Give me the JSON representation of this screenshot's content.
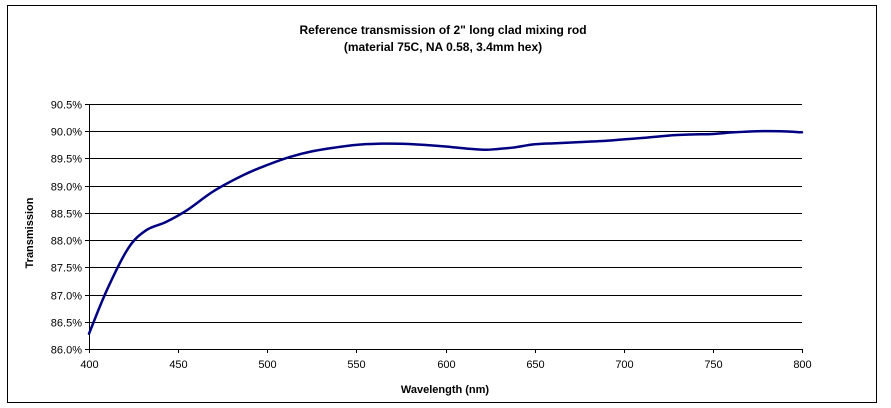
{
  "chart_data": {
    "type": "line",
    "title": "Reference transmission of 2\" long clad mixing rod",
    "subtitle": "(material 75C, NA 0.58, 3.4mm hex)",
    "xlabel": "Wavelength (nm)",
    "ylabel": "Transmission",
    "xlim": [
      400,
      800
    ],
    "ylim": [
      86.0,
      90.5
    ],
    "x_ticks": [
      400,
      450,
      500,
      550,
      600,
      650,
      700,
      750,
      800
    ],
    "y_ticks": [
      86.0,
      86.5,
      87.0,
      87.5,
      88.0,
      88.5,
      89.0,
      89.5,
      90.0,
      90.5
    ],
    "x_tick_labels": [
      "400",
      "450",
      "500",
      "550",
      "600",
      "650",
      "700",
      "750",
      "800"
    ],
    "y_tick_labels": [
      "86.0%",
      "86.5%",
      "87.0%",
      "87.5%",
      "88.0%",
      "88.5%",
      "89.0%",
      "89.5%",
      "90.0%",
      "90.5%"
    ],
    "grid": "horizontal",
    "legend": "none",
    "series": [
      {
        "color": "#000080",
        "x": [
          400,
          410,
          422,
          432,
          443,
          455,
          470,
          487,
          500,
          513,
          525,
          538,
          550,
          562,
          575,
          588,
          600,
          612,
          622,
          628,
          638,
          650,
          662,
          675,
          688,
          700,
          712,
          725,
          738,
          750,
          762,
          775,
          788,
          800
        ],
        "y": [
          86.28,
          87.08,
          87.85,
          88.18,
          88.33,
          88.55,
          88.9,
          89.2,
          89.38,
          89.53,
          89.63,
          89.7,
          89.75,
          89.77,
          89.77,
          89.75,
          89.72,
          89.68,
          89.66,
          89.67,
          89.7,
          89.76,
          89.78,
          89.8,
          89.82,
          89.85,
          89.88,
          89.92,
          89.94,
          89.95,
          89.98,
          90.0,
          90.0,
          89.98
        ]
      }
    ]
  }
}
